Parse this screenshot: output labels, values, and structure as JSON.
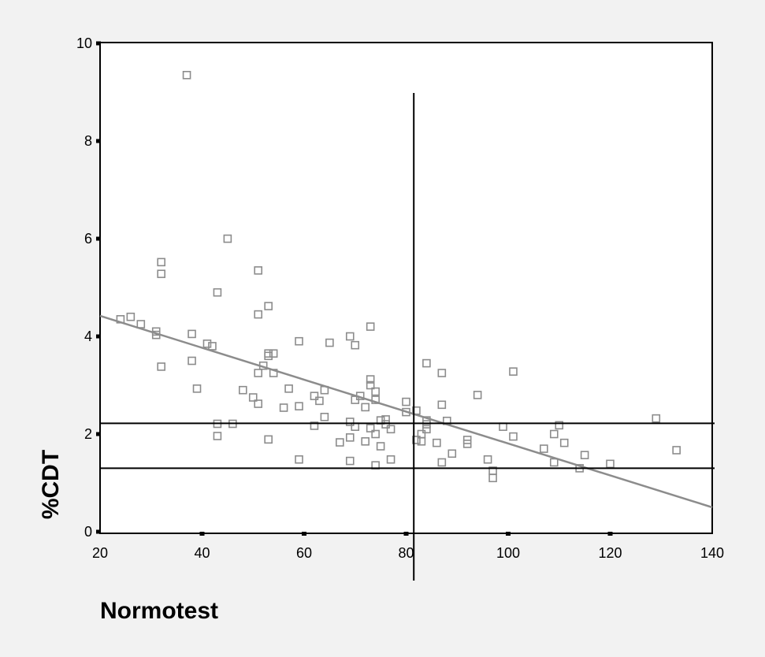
{
  "chart_data": {
    "type": "scatter",
    "xlabel": "Normotest",
    "ylabel": "%CDT",
    "xlim": [
      20,
      140
    ],
    "ylim": [
      0,
      10
    ],
    "x_ticks": [
      20,
      40,
      60,
      80,
      100,
      120,
      140
    ],
    "y_ticks": [
      0,
      2,
      4,
      6,
      8,
      10
    ],
    "grid": false,
    "legend": "none",
    "colors": {
      "background": "#f2f2f2",
      "plot_background": "#ffffff",
      "points": "#8c8c8c",
      "regression_line": "#8c8c8c",
      "reference_lines": "#000000"
    },
    "regression_line": {
      "x": [
        20,
        140
      ],
      "y": [
        4.42,
        0.5
      ]
    },
    "reference_lines": {
      "vertical_x": 81.5,
      "horizontal_y": [
        2.22,
        1.3
      ]
    },
    "series": [
      {
        "marker": "hollow-square",
        "points": [
          [
            37,
            9.35
          ],
          [
            45,
            6.0
          ],
          [
            32,
            5.52
          ],
          [
            32,
            5.28
          ],
          [
            51,
            5.35
          ],
          [
            43,
            4.9
          ],
          [
            53,
            4.62
          ],
          [
            51,
            4.45
          ],
          [
            24,
            4.35
          ],
          [
            26,
            4.4
          ],
          [
            28,
            4.25
          ],
          [
            31,
            4.1
          ],
          [
            31,
            4.03
          ],
          [
            38,
            4.05
          ],
          [
            41,
            3.85
          ],
          [
            42,
            3.8
          ],
          [
            73,
            4.2
          ],
          [
            69,
            4.0
          ],
          [
            70,
            3.82
          ],
          [
            65,
            3.87
          ],
          [
            59,
            3.9
          ],
          [
            53,
            3.65
          ],
          [
            54,
            3.65
          ],
          [
            53,
            3.6
          ],
          [
            38,
            3.5
          ],
          [
            32,
            3.38
          ],
          [
            52,
            3.4
          ],
          [
            51,
            3.25
          ],
          [
            54,
            3.25
          ],
          [
            39,
            2.93
          ],
          [
            48,
            2.9
          ],
          [
            57,
            2.93
          ],
          [
            50,
            2.75
          ],
          [
            51,
            2.62
          ],
          [
            56,
            2.54
          ],
          [
            59,
            2.57
          ],
          [
            62,
            2.78
          ],
          [
            63,
            2.68
          ],
          [
            64,
            2.9
          ],
          [
            64,
            2.35
          ],
          [
            62,
            2.17
          ],
          [
            43,
            2.21
          ],
          [
            46,
            2.21
          ],
          [
            43,
            1.96
          ],
          [
            53,
            1.89
          ],
          [
            59,
            1.48
          ],
          [
            67,
            1.83
          ],
          [
            69,
            1.93
          ],
          [
            69,
            1.45
          ],
          [
            69,
            2.25
          ],
          [
            70,
            2.15
          ],
          [
            72,
            1.85
          ],
          [
            73,
            2.12
          ],
          [
            74,
            2.0
          ],
          [
            74,
            1.36
          ],
          [
            75,
            1.75
          ],
          [
            75,
            2.28
          ],
          [
            76,
            2.3
          ],
          [
            76,
            2.2
          ],
          [
            77,
            2.1
          ],
          [
            77,
            1.48
          ],
          [
            73,
            3.12
          ],
          [
            73,
            3.0
          ],
          [
            71,
            2.78
          ],
          [
            70,
            2.7
          ],
          [
            72,
            2.55
          ],
          [
            74,
            2.7
          ],
          [
            74,
            2.87
          ],
          [
            80,
            2.66
          ],
          [
            80,
            2.45
          ],
          [
            82,
            2.48
          ],
          [
            82,
            1.88
          ],
          [
            83,
            1.85
          ],
          [
            83,
            2.0
          ],
          [
            84,
            2.1
          ],
          [
            84,
            2.28
          ],
          [
            84,
            3.45
          ],
          [
            84,
            2.2
          ],
          [
            86,
            1.82
          ],
          [
            87,
            1.42
          ],
          [
            87,
            2.6
          ],
          [
            87,
            3.25
          ],
          [
            88,
            2.27
          ],
          [
            89,
            1.6
          ],
          [
            92,
            1.88
          ],
          [
            92,
            1.8
          ],
          [
            94,
            2.8
          ],
          [
            96,
            1.48
          ],
          [
            97,
            1.25
          ],
          [
            97,
            1.1
          ],
          [
            99,
            2.15
          ],
          [
            101,
            1.95
          ],
          [
            101,
            3.28
          ],
          [
            107,
            1.7
          ],
          [
            109,
            2.0
          ],
          [
            109,
            1.42
          ],
          [
            110,
            2.18
          ],
          [
            111,
            1.82
          ],
          [
            114,
            1.3
          ],
          [
            115,
            1.57
          ],
          [
            120,
            1.39
          ],
          [
            129,
            2.32
          ],
          [
            133,
            1.67
          ]
        ]
      }
    ]
  }
}
